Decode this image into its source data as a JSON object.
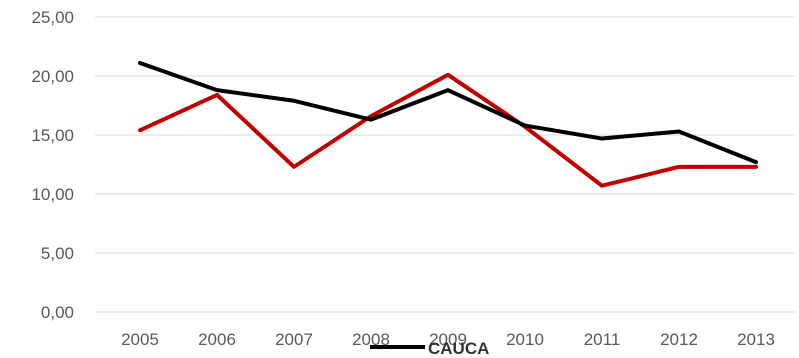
{
  "chart_data": {
    "type": "line",
    "categories": [
      "2005",
      "2006",
      "2007",
      "2008",
      "2009",
      "2010",
      "2011",
      "2012",
      "2013"
    ],
    "series": [
      {
        "name": "CAUCA",
        "color": "#000000",
        "values": [
          21.1,
          18.8,
          17.9,
          16.3,
          18.8,
          15.8,
          14.7,
          15.3,
          12.7
        ]
      },
      {
        "color": "#c00000",
        "values": [
          15.4,
          18.4,
          12.3,
          16.6,
          20.1,
          15.7,
          10.7,
          12.3,
          12.3
        ]
      }
    ],
    "yticks": [
      "0,00",
      "5,00",
      "10,00",
      "15,00",
      "20,00",
      "25,00"
    ],
    "ylim": [
      0,
      25
    ],
    "grid": true,
    "legend_position": "bottom"
  }
}
